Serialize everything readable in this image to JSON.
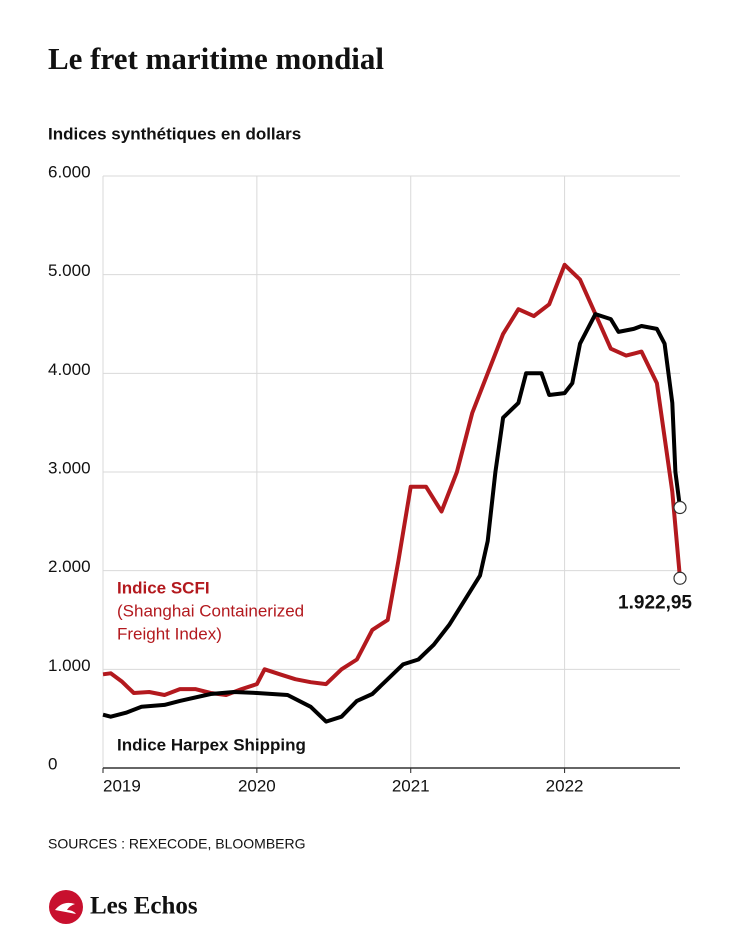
{
  "chart_data": {
    "type": "line",
    "title": "Le fret maritime mondial",
    "subtitle": "Indices synthétiques en dollars",
    "source": "SOURCES : REXECODE, BLOOMBERG",
    "brand": "Les Echos",
    "annotations": [
      "(Shanghai Containerized",
      "Freight Index)"
    ],
    "xlim": [
      2019,
      2022.75
    ],
    "xticks": [
      2019,
      2020,
      2021,
      2022
    ],
    "ylim": [
      0,
      6000
    ],
    "yticks": [
      0,
      {
        "value": 1000,
        "label": "1.000"
      },
      {
        "value": 2000,
        "label": "2.000"
      },
      {
        "value": 3000,
        "label": "3.000"
      },
      {
        "value": 4000,
        "label": "4.000"
      },
      {
        "value": 5000,
        "label": "5.000"
      },
      {
        "value": 6000,
        "label": "6.000"
      }
    ],
    "grid": true,
    "series": [
      {
        "name": "Indice SCFI",
        "color": "#b3191e",
        "x": [
          2019.0,
          2019.05,
          2019.12,
          2019.2,
          2019.3,
          2019.4,
          2019.5,
          2019.6,
          2019.7,
          2019.8,
          2019.9,
          2020.0,
          2020.05,
          2020.15,
          2020.25,
          2020.35,
          2020.45,
          2020.55,
          2020.65,
          2020.75,
          2020.85,
          2020.92,
          2021.0,
          2021.1,
          2021.2,
          2021.3,
          2021.4,
          2021.5,
          2021.6,
          2021.7,
          2021.8,
          2021.9,
          2022.0,
          2022.1,
          2022.2,
          2022.3,
          2022.4,
          2022.5,
          2022.6,
          2022.7,
          2022.75
        ],
        "values": [
          950,
          960,
          880,
          760,
          770,
          740,
          800,
          800,
          760,
          740,
          800,
          850,
          1000,
          950,
          900,
          870,
          850,
          1000,
          1100,
          1400,
          1500,
          2100,
          2850,
          2850,
          2600,
          3000,
          3600,
          4000,
          4400,
          4650,
          4580,
          4700,
          5100,
          4950,
          4600,
          4250,
          4180,
          4220,
          3900,
          2800,
          1922.95
        ],
        "value_labels": [
          null,
          null,
          null,
          null,
          null,
          null,
          null,
          null,
          null,
          null,
          null,
          null,
          null,
          null,
          null,
          null,
          null,
          null,
          null,
          null,
          null,
          null,
          null,
          null,
          null,
          null,
          null,
          null,
          null,
          null,
          null,
          null,
          null,
          null,
          null,
          null,
          null,
          null,
          null,
          null,
          "1.922,95"
        ]
      },
      {
        "name": "Indice Harpex Shipping",
        "color": "#000000",
        "x": [
          2019.0,
          2019.05,
          2019.15,
          2019.25,
          2019.4,
          2019.5,
          2019.7,
          2019.85,
          2020.0,
          2020.2,
          2020.35,
          2020.45,
          2020.55,
          2020.65,
          2020.75,
          2020.85,
          2020.95,
          2021.05,
          2021.15,
          2021.25,
          2021.35,
          2021.45,
          2021.5,
          2021.55,
          2021.6,
          2021.7,
          2021.75,
          2021.85,
          2021.9,
          2022.0,
          2022.05,
          2022.1,
          2022.2,
          2022.3,
          2022.35,
          2022.45,
          2022.5,
          2022.6,
          2022.65,
          2022.7,
          2022.72,
          2022.75
        ],
        "values": [
          540,
          520,
          560,
          620,
          640,
          680,
          750,
          770,
          760,
          740,
          620,
          470,
          520,
          680,
          750,
          900,
          1050,
          1100,
          1250,
          1450,
          1700,
          1950,
          2300,
          3000,
          3550,
          3700,
          4000,
          4000,
          3780,
          3800,
          3900,
          4300,
          4600,
          4550,
          4420,
          4450,
          4480,
          4450,
          4300,
          3700,
          3000,
          2640
        ]
      }
    ]
  }
}
